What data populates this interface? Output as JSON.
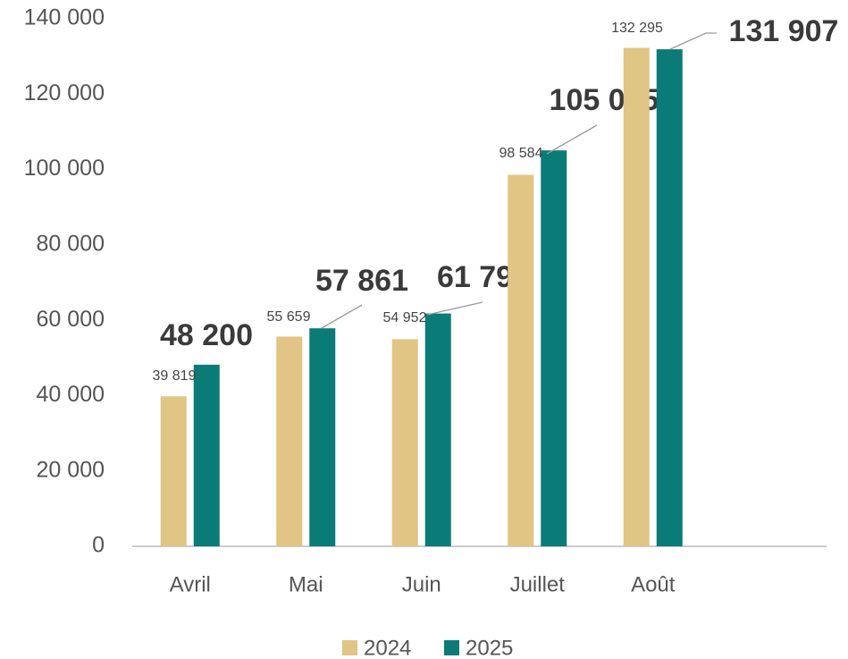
{
  "chart_data": {
    "type": "bar",
    "categories": [
      "Avril",
      "Mai",
      "Juin",
      "Juillet",
      "Août"
    ],
    "series": [
      {
        "name": "2024",
        "color": "#e0c584",
        "values": [
          39819,
          55659,
          54952,
          98584,
          132295
        ],
        "value_labels": [
          "39 819",
          "55 659",
          "54 952",
          "98 584",
          "132 295"
        ]
      },
      {
        "name": "2025",
        "color": "#0b7b78",
        "values": [
          48200,
          57861,
          61790,
          105075,
          131907
        ],
        "value_labels": [
          "48 200",
          "57 861",
          "61 790",
          "105 075",
          "131 907"
        ]
      }
    ],
    "ylim": [
      0,
      140000
    ],
    "yticks": [
      0,
      {
        "value": 20000,
        "label": "20 000"
      },
      {
        "value": 40000,
        "label": "40 000"
      },
      {
        "value": 60000,
        "label": "60 000"
      },
      {
        "value": 80000,
        "label": "80 000"
      },
      {
        "value": 100000,
        "label": "100 000"
      },
      {
        "value": 120000,
        "label": "120 000"
      },
      {
        "value": 140000,
        "label": "140 000"
      }
    ],
    "grid": false,
    "legend": "bottom"
  }
}
